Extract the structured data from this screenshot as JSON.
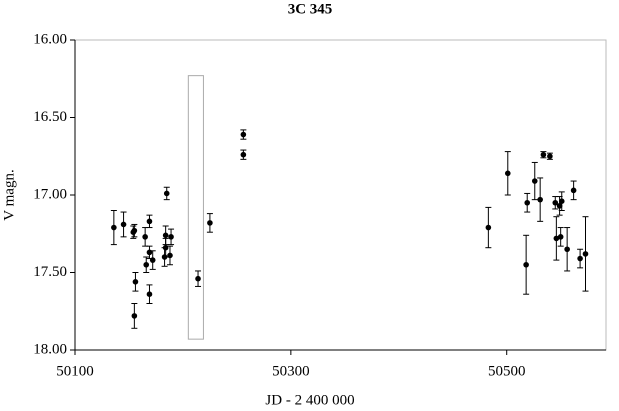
{
  "chart_data": {
    "type": "scatter",
    "title": "3C 345",
    "x_label": "JD  - 2 400 000",
    "y_label": "V magn.",
    "xlim": [
      50100,
      50592
    ],
    "ylim": [
      16,
      18
    ],
    "y_inverted": true,
    "xticks": [
      50100,
      50300,
      50500
    ],
    "yticks": [
      {
        "value": 16,
        "label": "16.00"
      },
      {
        "value": 16.5,
        "label": "16.50"
      },
      {
        "value": 17,
        "label": "17.00"
      },
      {
        "value": 17.5,
        "label": "17.50"
      },
      {
        "value": 18,
        "label": "18.00"
      }
    ],
    "color": "#000000",
    "box": {
      "x": [
        50205,
        50219
      ],
      "y": [
        16.23,
        17.93
      ],
      "color": "#aaaaaa"
    },
    "x": [
      50136,
      50145,
      50154,
      50155,
      50156,
      50155,
      50165,
      50166,
      50169,
      50169,
      50169,
      50172,
      50183,
      50185,
      50184,
      50184,
      50189,
      50188,
      50214,
      50225,
      50256,
      50256,
      50483,
      50501,
      50518,
      50519,
      50526,
      50531,
      50534,
      50540,
      50545,
      50546,
      50549,
      50550,
      50551,
      50556,
      50562,
      50568,
      50573
    ],
    "values": [
      17.21,
      17.19,
      17.24,
      17.23,
      17.56,
      17.78,
      17.27,
      17.45,
      17.37,
      17.17,
      17.64,
      17.42,
      17.4,
      16.99,
      17.26,
      17.34,
      17.27,
      17.39,
      17.54,
      17.18,
      16.74,
      16.61,
      17.21,
      16.86,
      17.45,
      17.05,
      16.91,
      17.03,
      16.74,
      16.75,
      17.05,
      17.28,
      17.07,
      17.27,
      17.04,
      17.35,
      16.97,
      17.41,
      17.38
    ],
    "errors": [
      0.11,
      0.08,
      0.04,
      0.04,
      0.06,
      0.08,
      0.06,
      0.05,
      0.04,
      0.04,
      0.06,
      0.06,
      0.06,
      0.04,
      0.06,
      0.06,
      0.05,
      0.06,
      0.05,
      0.06,
      0.03,
      0.03,
      0.13,
      0.14,
      0.19,
      0.06,
      0.12,
      0.14,
      0.02,
      0.02,
      0.04,
      0.14,
      0.06,
      0.06,
      0.06,
      0.14,
      0.06,
      0.06,
      0.24
    ]
  }
}
